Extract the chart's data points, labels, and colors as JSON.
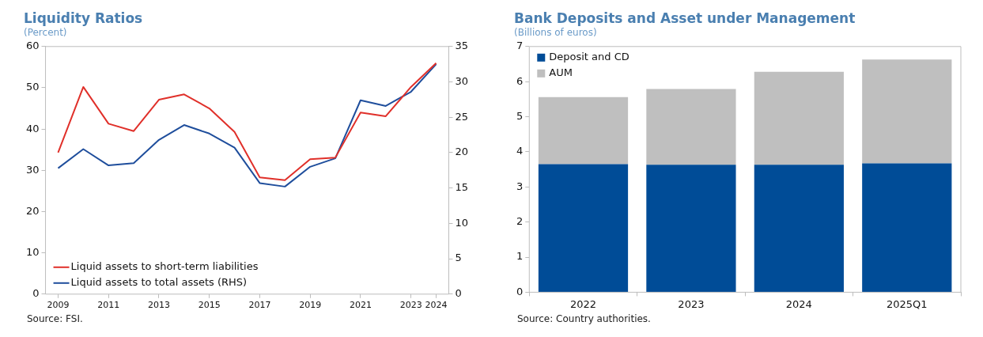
{
  "chart_data": [
    {
      "type": "line",
      "title": "Liquidity Ratios",
      "subtitle": "(Percent)",
      "x": [
        2009,
        2010,
        2011,
        2012,
        2013,
        2014,
        2015,
        2016,
        2017,
        2018,
        2019,
        2020,
        2021,
        2022,
        2023,
        2024
      ],
      "xlim": [
        2008.5,
        2024.5
      ],
      "xticks": [
        2009,
        2011,
        2013,
        2015,
        2017,
        2019,
        2021,
        2023,
        2024
      ],
      "ylim": [
        0,
        60
      ],
      "yticks": [
        0,
        10,
        20,
        30,
        40,
        50,
        60
      ],
      "y2lim": [
        0,
        35
      ],
      "y2ticks": [
        0,
        5,
        10,
        15,
        20,
        25,
        30,
        35
      ],
      "grid": false,
      "legend": "bottom left",
      "marker": "none",
      "line_style": "solid",
      "series": [
        {
          "name": "Liquid assets to short-term liabilities",
          "color": "#e0302a",
          "values": [
            34.3,
            50.2,
            41.3,
            39.5,
            47.1,
            48.4,
            45.0,
            39.3,
            28.3,
            27.6,
            32.7,
            33.1,
            44.0,
            43.1,
            50.2,
            56.0
          ]
        },
        {
          "name": "Liquid assets to total assets (RHS)",
          "color": "#1f4e9c",
          "axis": "y2",
          "values": [
            17.8,
            20.5,
            18.2,
            18.5,
            21.8,
            23.9,
            22.7,
            20.7,
            15.7,
            15.2,
            18.0,
            19.2,
            27.4,
            26.6,
            28.6,
            32.5
          ]
        }
      ],
      "annotations": [
        "Source: FSI."
      ]
    },
    {
      "type": "bar",
      "stacked": true,
      "title": "Bank Deposits and Asset under Management",
      "subtitle": "(Billions of euros)",
      "categories": [
        "2022",
        "2023",
        "2024",
        "2025Q1"
      ],
      "ylim": [
        0,
        7
      ],
      "yticks": [
        0,
        1,
        2,
        3,
        4,
        5,
        6,
        7
      ],
      "grid": false,
      "legend": "top left",
      "series": [
        {
          "name": "Deposit and CD",
          "color": "#004c97",
          "values": [
            3.65,
            3.63,
            3.63,
            3.67
          ]
        },
        {
          "name": "AUM",
          "color": "#bfbfbf",
          "values": [
            1.91,
            2.16,
            2.65,
            2.96
          ]
        }
      ],
      "annotations": [
        "Source: Country authorities."
      ]
    }
  ]
}
